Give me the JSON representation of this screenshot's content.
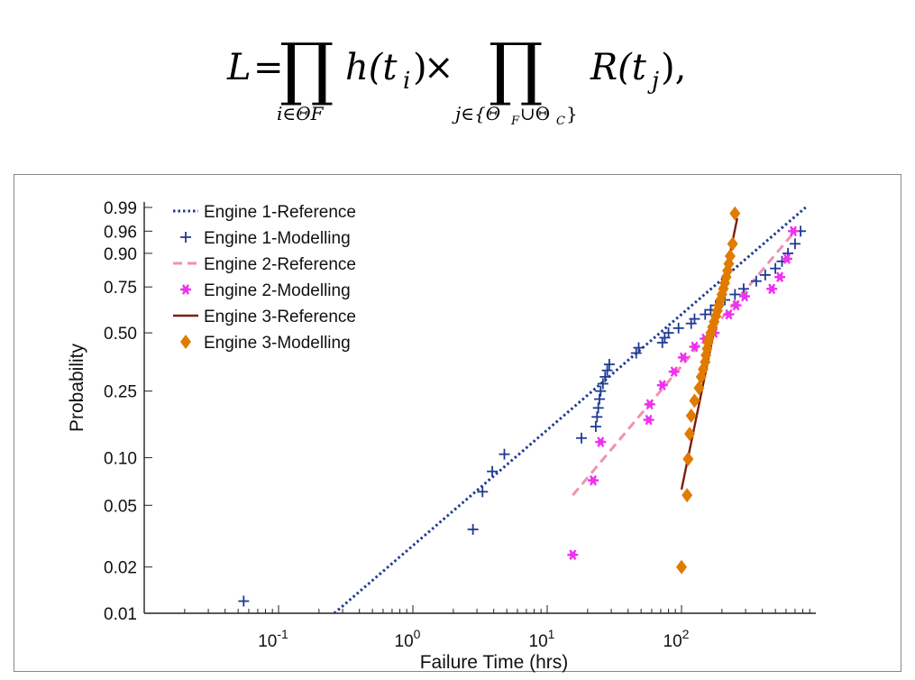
{
  "formula": {
    "lhs": "L",
    "equals": "=",
    "prod_symbol": "∏",
    "factor1": "h(t",
    "factor1_sub": "i",
    "factor1_close": ")",
    "times": "×",
    "factor2": "R(t",
    "factor2_sub": "j",
    "factor2_close": "),",
    "limit1": "i∈ΘF",
    "limit2": "j∈{Θ",
    "limit2_sub1": "F",
    "limit2_union": "∪Θ",
    "limit2_sub2": "C",
    "limit2_close": "}"
  },
  "chart_data": {
    "type": "scatter",
    "xlabel": "Failure Time (hrs)",
    "ylabel": "Probability",
    "xscale": "log",
    "yscale": "weibull-probability",
    "xlim": [
      0.01,
      1000
    ],
    "ylim": [
      0.01,
      0.99
    ],
    "x_ticks": [
      {
        "value": 0.1,
        "base": "10",
        "exp": "-1"
      },
      {
        "value": 1,
        "base": "10",
        "exp": "0"
      },
      {
        "value": 10,
        "base": "10",
        "exp": "1"
      },
      {
        "value": 100,
        "base": "10",
        "exp": "2"
      }
    ],
    "y_ticks": [
      {
        "value": 0.01,
        "label": "0.01"
      },
      {
        "value": 0.02,
        "label": "0.02"
      },
      {
        "value": 0.05,
        "label": "0.05"
      },
      {
        "value": 0.1,
        "label": "0.10"
      },
      {
        "value": 0.25,
        "label": "0.25"
      },
      {
        "value": 0.5,
        "label": "0.50"
      },
      {
        "value": 0.75,
        "label": "0.75"
      },
      {
        "value": 0.9,
        "label": "0.90"
      },
      {
        "value": 0.96,
        "label": "0.96"
      },
      {
        "value": 0.99,
        "label": "0.99"
      }
    ],
    "grid": false,
    "legend_position": "top-left",
    "series": [
      {
        "name": "Engine 1-Reference",
        "kind": "line",
        "style": "dotted",
        "color": "#1f3a93",
        "x": [
          0.26,
          840
        ],
        "y": [
          0.01,
          0.99
        ]
      },
      {
        "name": "Engine 1-Modelling",
        "kind": "marker",
        "marker": "plus",
        "color": "#1f3a93",
        "x": [
          0.055,
          2.8,
          3.3,
          3.9,
          4.8,
          18,
          23,
          23.5,
          24,
          24.5,
          25,
          26,
          27,
          28,
          29,
          46,
          48,
          72,
          75,
          80,
          95,
          118,
          125,
          150,
          165,
          180,
          210,
          250,
          290,
          360,
          420,
          500,
          560,
          620,
          700,
          770
        ],
        "y": [
          0.012,
          0.035,
          0.061,
          0.082,
          0.105,
          0.132,
          0.155,
          0.177,
          0.2,
          0.225,
          0.25,
          0.275,
          0.3,
          0.325,
          0.35,
          0.4,
          0.425,
          0.45,
          0.475,
          0.5,
          0.525,
          0.55,
          0.575,
          0.6,
          0.625,
          0.65,
          0.68,
          0.71,
          0.74,
          0.78,
          0.81,
          0.84,
          0.87,
          0.9,
          0.93,
          0.96
        ]
      },
      {
        "name": "Engine 2-Reference",
        "kind": "line",
        "style": "dashed",
        "color": "#ee91b5",
        "x": [
          15.5,
          700
        ],
        "y": [
          0.058,
          0.96
        ]
      },
      {
        "name": "Engine 2-Modelling",
        "kind": "marker",
        "marker": "asterisk",
        "color": "#ee33ee",
        "x": [
          15.5,
          22,
          25,
          57,
          58,
          72,
          88,
          103,
          125,
          150,
          175,
          225,
          255,
          295,
          470,
          540,
          610,
          680
        ],
        "y": [
          0.024,
          0.072,
          0.125,
          0.17,
          0.21,
          0.27,
          0.32,
          0.38,
          0.43,
          0.47,
          0.5,
          0.6,
          0.65,
          0.7,
          0.74,
          0.8,
          0.88,
          0.96
        ]
      },
      {
        "name": "Engine 3-Reference",
        "kind": "line",
        "style": "solid",
        "color": "#7a1e0f",
        "x": [
          100,
          260
        ],
        "y": [
          0.063,
          0.98
        ]
      },
      {
        "name": "Engine 3-Modelling",
        "kind": "marker",
        "marker": "diamond",
        "color": "#e07b00",
        "x": [
          100,
          110,
          112,
          115,
          118,
          125,
          135,
          140,
          145,
          150,
          152,
          155,
          158,
          160,
          165,
          170,
          175,
          180,
          185,
          190,
          195,
          200,
          205,
          210,
          215,
          220,
          225,
          230,
          240,
          250
        ],
        "y": [
          0.02,
          0.058,
          0.098,
          0.14,
          0.18,
          0.22,
          0.26,
          0.3,
          0.33,
          0.36,
          0.39,
          0.42,
          0.45,
          0.47,
          0.5,
          0.53,
          0.56,
          0.59,
          0.62,
          0.65,
          0.68,
          0.71,
          0.74,
          0.77,
          0.8,
          0.83,
          0.86,
          0.89,
          0.93,
          0.985
        ]
      }
    ]
  }
}
